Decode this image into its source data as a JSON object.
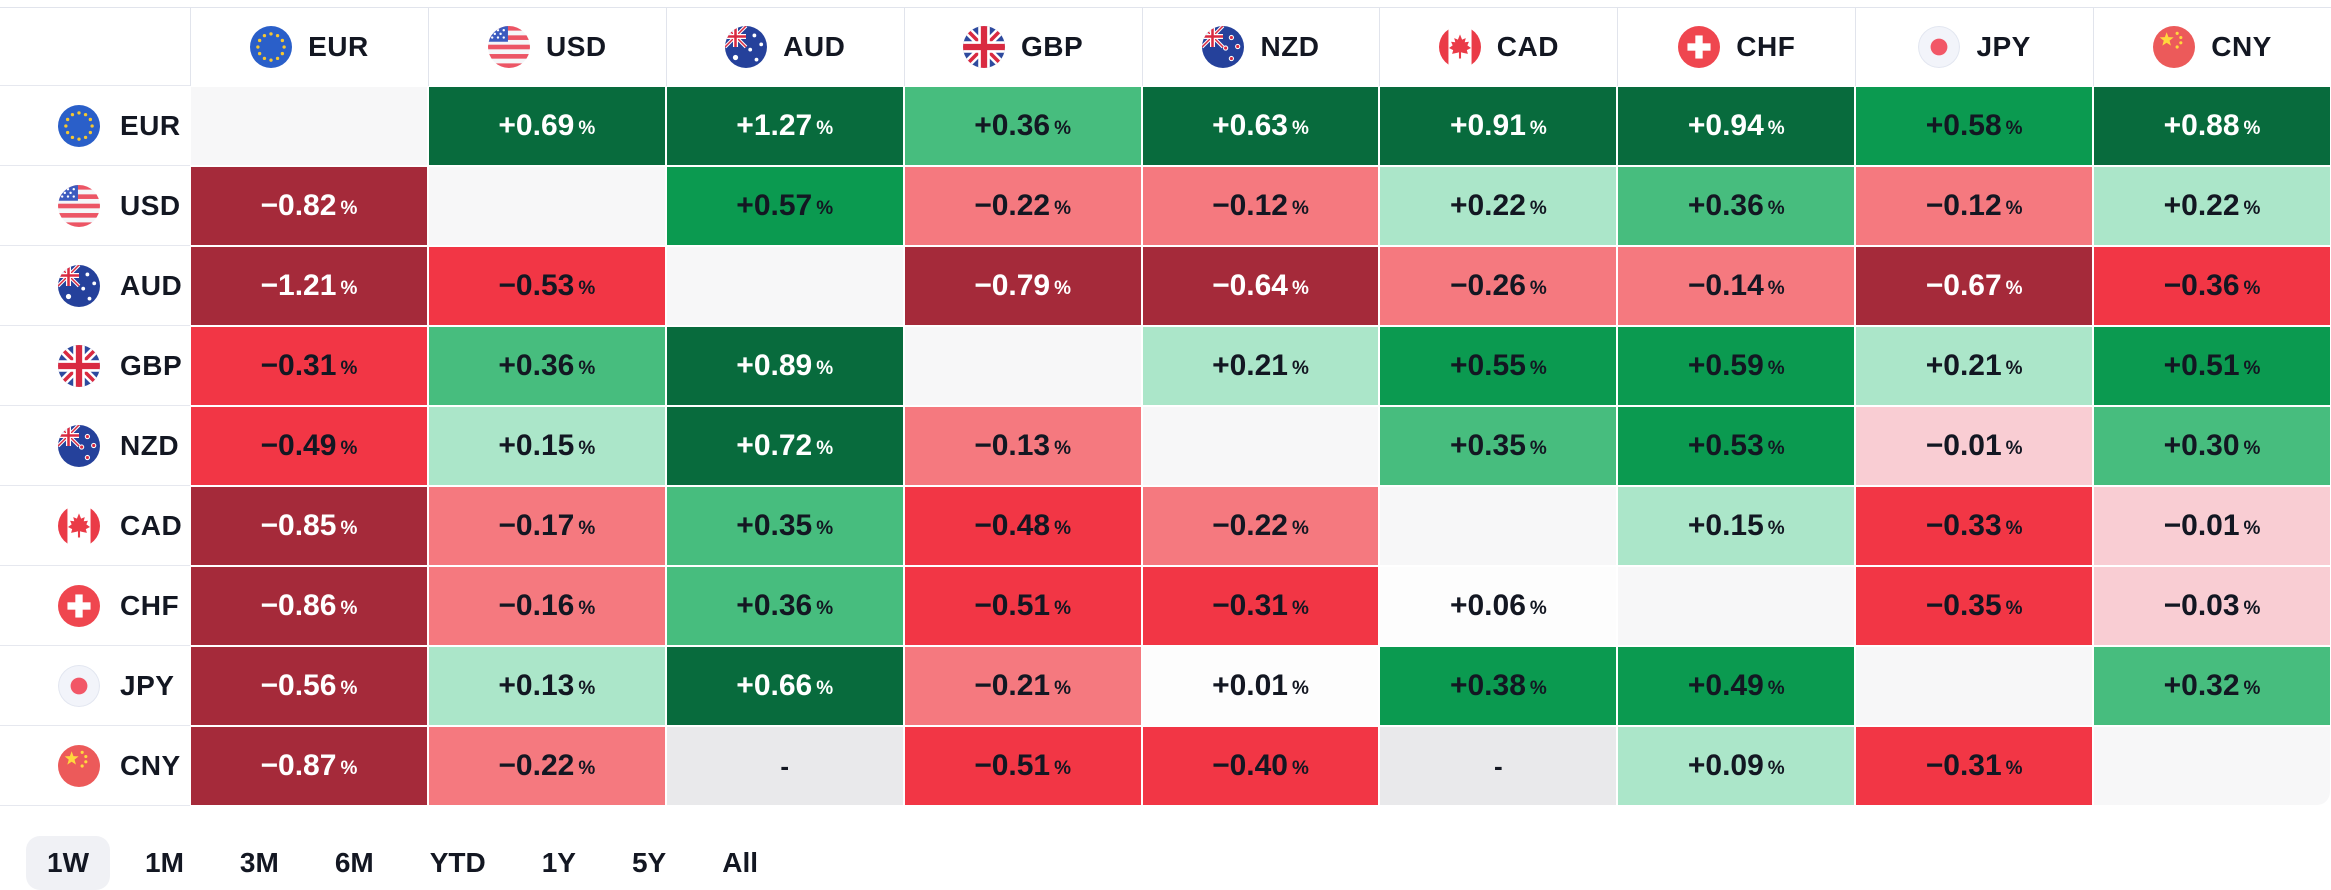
{
  "table": {
    "percent_suffix": "%",
    "columns": [
      {
        "code": "EUR",
        "flag": "eu"
      },
      {
        "code": "USD",
        "flag": "us"
      },
      {
        "code": "AUD",
        "flag": "au"
      },
      {
        "code": "GBP",
        "flag": "gb"
      },
      {
        "code": "NZD",
        "flag": "nz"
      },
      {
        "code": "CAD",
        "flag": "ca"
      },
      {
        "code": "CHF",
        "flag": "ch"
      },
      {
        "code": "JPY",
        "flag": "jp"
      },
      {
        "code": "CNY",
        "flag": "cn"
      }
    ],
    "rows": [
      {
        "code": "EUR",
        "flag": "eu",
        "cells": [
          {
            "text": "",
            "level": "self"
          },
          {
            "text": "+0.69",
            "level": "g4"
          },
          {
            "text": "+1.27",
            "level": "g4"
          },
          {
            "text": "+0.36",
            "level": "g2"
          },
          {
            "text": "+0.63",
            "level": "g4"
          },
          {
            "text": "+0.91",
            "level": "g4"
          },
          {
            "text": "+0.94",
            "level": "g4"
          },
          {
            "text": "+0.58",
            "level": "g3"
          },
          {
            "text": "+0.88",
            "level": "g4"
          }
        ]
      },
      {
        "code": "USD",
        "flag": "us",
        "cells": [
          {
            "text": "−0.82",
            "level": "r4"
          },
          {
            "text": "",
            "level": "self"
          },
          {
            "text": "+0.57",
            "level": "g3"
          },
          {
            "text": "−0.22",
            "level": "r2"
          },
          {
            "text": "−0.12",
            "level": "r2"
          },
          {
            "text": "+0.22",
            "level": "g1"
          },
          {
            "text": "+0.36",
            "level": "g2"
          },
          {
            "text": "−0.12",
            "level": "r2"
          },
          {
            "text": "+0.22",
            "level": "g1"
          }
        ]
      },
      {
        "code": "AUD",
        "flag": "au",
        "cells": [
          {
            "text": "−1.21",
            "level": "r4"
          },
          {
            "text": "−0.53",
            "level": "r3"
          },
          {
            "text": "",
            "level": "self"
          },
          {
            "text": "−0.79",
            "level": "r4"
          },
          {
            "text": "−0.64",
            "level": "r4"
          },
          {
            "text": "−0.26",
            "level": "r2"
          },
          {
            "text": "−0.14",
            "level": "r2"
          },
          {
            "text": "−0.67",
            "level": "r4"
          },
          {
            "text": "−0.36",
            "level": "r3"
          }
        ]
      },
      {
        "code": "GBP",
        "flag": "gb",
        "cells": [
          {
            "text": "−0.31",
            "level": "r3"
          },
          {
            "text": "+0.36",
            "level": "g2"
          },
          {
            "text": "+0.89",
            "level": "g4"
          },
          {
            "text": "",
            "level": "self"
          },
          {
            "text": "+0.21",
            "level": "g1"
          },
          {
            "text": "+0.55",
            "level": "g3"
          },
          {
            "text": "+0.59",
            "level": "g3"
          },
          {
            "text": "+0.21",
            "level": "g1"
          },
          {
            "text": "+0.51",
            "level": "g3"
          }
        ]
      },
      {
        "code": "NZD",
        "flag": "nz",
        "cells": [
          {
            "text": "−0.49",
            "level": "r3"
          },
          {
            "text": "+0.15",
            "level": "g1"
          },
          {
            "text": "+0.72",
            "level": "g4"
          },
          {
            "text": "−0.13",
            "level": "r2"
          },
          {
            "text": "",
            "level": "self"
          },
          {
            "text": "+0.35",
            "level": "g2"
          },
          {
            "text": "+0.53",
            "level": "g3"
          },
          {
            "text": "−0.01",
            "level": "p1"
          },
          {
            "text": "+0.30",
            "level": "g2"
          }
        ]
      },
      {
        "code": "CAD",
        "flag": "ca",
        "cells": [
          {
            "text": "−0.85",
            "level": "r4"
          },
          {
            "text": "−0.17",
            "level": "r2"
          },
          {
            "text": "+0.35",
            "level": "g2"
          },
          {
            "text": "−0.48",
            "level": "r3"
          },
          {
            "text": "−0.22",
            "level": "r2"
          },
          {
            "text": "",
            "level": "self"
          },
          {
            "text": "+0.15",
            "level": "g1"
          },
          {
            "text": "−0.33",
            "level": "r3"
          },
          {
            "text": "−0.01",
            "level": "p1"
          }
        ]
      },
      {
        "code": "CHF",
        "flag": "ch",
        "cells": [
          {
            "text": "−0.86",
            "level": "r4"
          },
          {
            "text": "−0.16",
            "level": "r2"
          },
          {
            "text": "+0.36",
            "level": "g2"
          },
          {
            "text": "−0.51",
            "level": "r3"
          },
          {
            "text": "−0.31",
            "level": "r3"
          },
          {
            "text": "+0.06",
            "level": "w"
          },
          {
            "text": "",
            "level": "self"
          },
          {
            "text": "−0.35",
            "level": "r3"
          },
          {
            "text": "−0.03",
            "level": "p1"
          }
        ]
      },
      {
        "code": "JPY",
        "flag": "jp",
        "cells": [
          {
            "text": "−0.56",
            "level": "r4"
          },
          {
            "text": "+0.13",
            "level": "g1"
          },
          {
            "text": "+0.66",
            "level": "g4"
          },
          {
            "text": "−0.21",
            "level": "r2"
          },
          {
            "text": "+0.01",
            "level": "w"
          },
          {
            "text": "+0.38",
            "level": "g3"
          },
          {
            "text": "+0.49",
            "level": "g3"
          },
          {
            "text": "",
            "level": "self"
          },
          {
            "text": "+0.32",
            "level": "g2"
          }
        ]
      },
      {
        "code": "CNY",
        "flag": "cn",
        "cells": [
          {
            "text": "−0.87",
            "level": "r4"
          },
          {
            "text": "−0.22",
            "level": "r2"
          },
          {
            "text": "-",
            "level": "na"
          },
          {
            "text": "−0.51",
            "level": "r3"
          },
          {
            "text": "−0.40",
            "level": "r3"
          },
          {
            "text": "-",
            "level": "na"
          },
          {
            "text": "+0.09",
            "level": "g1"
          },
          {
            "text": "−0.31",
            "level": "r3"
          },
          {
            "text": "",
            "level": "self"
          }
        ]
      }
    ]
  },
  "colors": {
    "g4": {
      "bg": "#086b3d",
      "fg": "#ffffff"
    },
    "g3": {
      "bg": "#0b9a50",
      "fg": "#131722"
    },
    "g2": {
      "bg": "#47bd7e",
      "fg": "#131722"
    },
    "g1": {
      "bg": "#abe6c9",
      "fg": "#131722"
    },
    "w": {
      "bg": "#fdfdfd",
      "fg": "#131722"
    },
    "p1": {
      "bg": "#f9cdd3",
      "fg": "#131722"
    },
    "r2": {
      "bg": "#f5797f",
      "fg": "#131722"
    },
    "r3": {
      "bg": "#f23645",
      "fg": "#131722"
    },
    "r4": {
      "bg": "#a52a3a",
      "fg": "#ffffff"
    },
    "self": {
      "bg": "#f7f7f8",
      "fg": "#131722"
    },
    "na": {
      "bg": "#e9e9eb",
      "fg": "#131722"
    }
  },
  "range_bar": {
    "selected": "1W",
    "items": [
      "1W",
      "1M",
      "3M",
      "6M",
      "YTD",
      "1Y",
      "5Y",
      "All"
    ]
  }
}
